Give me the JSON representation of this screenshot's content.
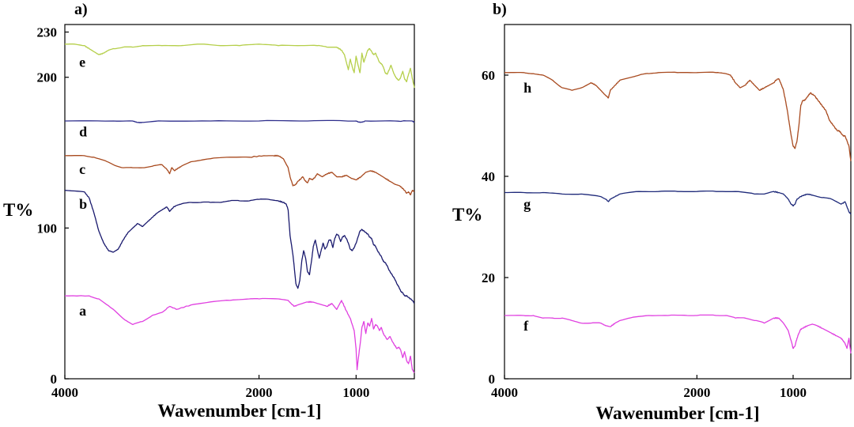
{
  "chart_data": [
    {
      "panel": "a)",
      "type": "line",
      "xlabel": "Wawenumber [cm-1]",
      "ylabel": "T%",
      "xlim": [
        4000,
        400
      ],
      "ylim": [
        0,
        235
      ],
      "x_ticks": [
        4000,
        2000,
        1000
      ],
      "x_tick_labels": [
        "4000",
        "2000",
        "1000"
      ],
      "y_ticks": [
        0,
        100,
        200,
        230
      ],
      "y_tick_labels": [
        "0",
        "100",
        "200",
        "230"
      ],
      "series": [
        {
          "name": "a",
          "color": "#e040e0",
          "label_at": [
            3950,
            45
          ],
          "x": [
            4000,
            3750,
            3650,
            3500,
            3400,
            3300,
            3200,
            3100,
            3000,
            2920,
            2850,
            2700,
            2500,
            2300,
            2100,
            2000,
            1800,
            1700,
            1640,
            1600,
            1500,
            1450,
            1400,
            1300,
            1250,
            1200,
            1150,
            1100,
            1060,
            1040,
            1020,
            1000,
            990,
            980,
            960,
            940,
            920,
            900,
            880,
            860,
            840,
            820,
            800,
            780,
            760,
            740,
            720,
            700,
            680,
            650,
            620,
            600,
            580,
            560,
            540,
            520,
            500,
            480,
            460,
            440,
            420,
            400
          ],
          "y": [
            55,
            55,
            53,
            46,
            40,
            36,
            38,
            42,
            44,
            48,
            46,
            49,
            51,
            52,
            53,
            53,
            53,
            52,
            48,
            49,
            51,
            51,
            50,
            48,
            50,
            46,
            52,
            45,
            40,
            36,
            32,
            20,
            6,
            12,
            22,
            34,
            38,
            30,
            37,
            35,
            40,
            33,
            36,
            35,
            32,
            34,
            30,
            28,
            26,
            28,
            24,
            22,
            20,
            21,
            19,
            14,
            18,
            12,
            10,
            15,
            6,
            4
          ]
        },
        {
          "name": "b",
          "color": "#1a1a6e",
          "label_at": [
            3950,
            116
          ],
          "x": [
            4000,
            3800,
            3750,
            3700,
            3650,
            3600,
            3550,
            3500,
            3450,
            3400,
            3350,
            3300,
            3250,
            3200,
            3150,
            3100,
            3050,
            3000,
            2950,
            2920,
            2880,
            2850,
            2800,
            2700,
            2600,
            2500,
            2400,
            2300,
            2200,
            2100,
            2000,
            1900,
            1800,
            1750,
            1720,
            1700,
            1680,
            1650,
            1620,
            1600,
            1580,
            1560,
            1540,
            1520,
            1500,
            1480,
            1460,
            1440,
            1420,
            1400,
            1380,
            1360,
            1340,
            1320,
            1300,
            1280,
            1260,
            1240,
            1220,
            1200,
            1180,
            1160,
            1140,
            1120,
            1100,
            1080,
            1060,
            1040,
            1020,
            1000,
            980,
            960,
            940,
            920,
            900,
            880,
            860,
            840,
            820,
            800,
            780,
            760,
            740,
            720,
            700,
            680,
            660,
            640,
            620,
            600,
            580,
            560,
            540,
            520,
            500,
            480,
            460,
            440,
            420,
            400
          ],
          "y": [
            125,
            124,
            120,
            110,
            98,
            90,
            85,
            84,
            86,
            92,
            97,
            100,
            103,
            101,
            104,
            107,
            110,
            112,
            114,
            111,
            114,
            115,
            116,
            117,
            117,
            117,
            117,
            118,
            118,
            118,
            119,
            119,
            118,
            117,
            116,
            112,
            95,
            82,
            63,
            60,
            65,
            78,
            85,
            80,
            71,
            69,
            78,
            88,
            92,
            86,
            80,
            85,
            90,
            86,
            88,
            92,
            92,
            87,
            93,
            96,
            95,
            91,
            94,
            95,
            93,
            90,
            86,
            85,
            87,
            90,
            94,
            98,
            99,
            98,
            97,
            96,
            94,
            93,
            89,
            88,
            85,
            83,
            81,
            78,
            77,
            75,
            72,
            70,
            68,
            66,
            63,
            61,
            58,
            57,
            55,
            55,
            54,
            53,
            52,
            50
          ]
        },
        {
          "name": "c",
          "color": "#a84a1f",
          "label_at": [
            3950,
            139
          ],
          "x": [
            4000,
            3800,
            3700,
            3600,
            3500,
            3400,
            3300,
            3200,
            3100,
            3000,
            2950,
            2920,
            2900,
            2870,
            2850,
            2800,
            2700,
            2500,
            2300,
            2100,
            1950,
            1850,
            1800,
            1750,
            1700,
            1680,
            1650,
            1620,
            1600,
            1580,
            1550,
            1520,
            1500,
            1480,
            1450,
            1420,
            1400,
            1350,
            1300,
            1250,
            1200,
            1150,
            1100,
            1050,
            1000,
            950,
            900,
            850,
            800,
            750,
            700,
            650,
            600,
            550,
            500,
            480,
            460,
            440,
            420,
            400
          ],
          "y": [
            148,
            148,
            147,
            145,
            142,
            140,
            140,
            140,
            141,
            142,
            139,
            136,
            140,
            138,
            139,
            141,
            144,
            146,
            147,
            147,
            148,
            148,
            148,
            146,
            140,
            134,
            128,
            129,
            131,
            132,
            134,
            131,
            130,
            133,
            132,
            134,
            136,
            134,
            136,
            137,
            134,
            134,
            135,
            133,
            132,
            134,
            137,
            138,
            137,
            135,
            133,
            131,
            129,
            128,
            125,
            123,
            124,
            122,
            125,
            124
          ]
        },
        {
          "name": "d",
          "color": "#2e2e8c",
          "label_at": [
            3950,
            164
          ],
          "x": [
            4000,
            3500,
            3300,
            3250,
            3200,
            3000,
            2500,
            2000,
            1500,
            1100,
            1000,
            960,
            900,
            600,
            420,
            400
          ],
          "y": [
            171,
            171,
            171,
            170,
            170,
            171,
            171,
            171,
            171,
            171,
            171,
            170,
            171,
            171,
            171,
            170
          ]
        },
        {
          "name": "e",
          "color": "#b5cf4a",
          "label_at": [
            3950,
            210
          ],
          "x": [
            4000,
            3900,
            3800,
            3750,
            3700,
            3650,
            3600,
            3550,
            3500,
            3400,
            3300,
            3200,
            3000,
            2800,
            2600,
            2400,
            2200,
            2000,
            1800,
            1600,
            1400,
            1300,
            1200,
            1150,
            1120,
            1100,
            1080,
            1060,
            1040,
            1020,
            1000,
            980,
            960,
            940,
            920,
            900,
            880,
            860,
            840,
            820,
            800,
            780,
            760,
            740,
            720,
            700,
            680,
            660,
            640,
            620,
            600,
            580,
            560,
            540,
            520,
            500,
            480,
            460,
            440,
            420,
            400
          ],
          "y": [
            222,
            222,
            221,
            219,
            217,
            215,
            216,
            218,
            219,
            220,
            220,
            221,
            221,
            221,
            222,
            221,
            221,
            222,
            221,
            221,
            221,
            220,
            220,
            218,
            215,
            210,
            205,
            212,
            207,
            203,
            214,
            208,
            203,
            216,
            210,
            214,
            218,
            219,
            217,
            215,
            216,
            213,
            210,
            209,
            207,
            203,
            202,
            205,
            208,
            204,
            201,
            199,
            198,
            200,
            204,
            199,
            197,
            202,
            206,
            199,
            193
          ]
        }
      ]
    },
    {
      "panel": "b)",
      "type": "line",
      "xlabel": "Wawenumber [cm-1]",
      "ylabel": "T%",
      "xlim": [
        4000,
        400
      ],
      "ylim": [
        0,
        70
      ],
      "x_ticks": [
        4000,
        2000,
        1000
      ],
      "x_tick_labels": [
        "4000",
        "2000",
        "1000"
      ],
      "y_ticks": [
        0,
        20,
        40,
        60
      ],
      "y_tick_labels": [
        "0",
        "20",
        "40",
        "60"
      ],
      "series": [
        {
          "name": "f",
          "color": "#e040e0",
          "label_at": [
            3900,
            10.5
          ],
          "x": [
            4000,
            3800,
            3700,
            3600,
            3500,
            3400,
            3300,
            3200,
            3100,
            3000,
            2950,
            2900,
            2850,
            2800,
            2700,
            2500,
            2300,
            2100,
            2000,
            1800,
            1700,
            1600,
            1500,
            1400,
            1300,
            1250,
            1200,
            1150,
            1100,
            1050,
            1020,
            1000,
            980,
            960,
            940,
            920,
            900,
            850,
            800,
            750,
            700,
            650,
            600,
            550,
            500,
            480,
            460,
            440,
            420,
            400
          ],
          "y": [
            12.5,
            12.5,
            12.5,
            12,
            12,
            12,
            11.5,
            11,
            11,
            11,
            10.5,
            10.3,
            11,
            11.5,
            12,
            12.5,
            12.5,
            12.5,
            12.5,
            12.5,
            12.5,
            12,
            12,
            11.5,
            11,
            11.5,
            12,
            12,
            11,
            9.5,
            7.5,
            6,
            6.5,
            8,
            9,
            9.8,
            10,
            10.5,
            10.8,
            10.5,
            10,
            9.5,
            9,
            8.5,
            8,
            7.5,
            7,
            6,
            8,
            5
          ]
        },
        {
          "name": "g",
          "color": "#1f2a7a",
          "label_at": [
            3900,
            34.5
          ],
          "x": [
            4000,
            3800,
            3600,
            3400,
            3200,
            3000,
            2950,
            2920,
            2900,
            2850,
            2800,
            2600,
            2400,
            2200,
            2000,
            1800,
            1600,
            1400,
            1300,
            1200,
            1150,
            1100,
            1050,
            1020,
            1000,
            980,
            960,
            920,
            900,
            850,
            800,
            700,
            600,
            500,
            460,
            440,
            420,
            400
          ],
          "y": [
            36.8,
            36.8,
            36.8,
            36.5,
            36.5,
            36,
            35.5,
            35,
            35.5,
            36,
            36.5,
            37,
            37,
            37,
            37,
            37,
            37,
            36.5,
            36.5,
            37,
            36.8,
            36.5,
            35.5,
            34.5,
            34.2,
            34.5,
            35.5,
            36,
            36.2,
            36.5,
            36.3,
            35.8,
            35.5,
            34.5,
            35,
            34,
            33,
            32.5
          ]
        },
        {
          "name": "h",
          "color": "#a84a1f",
          "label_at": [
            3900,
            57.5
          ],
          "x": [
            4000,
            3800,
            3700,
            3600,
            3500,
            3400,
            3300,
            3200,
            3100,
            3050,
            3000,
            2950,
            2920,
            2900,
            2850,
            2800,
            2700,
            2600,
            2500,
            2400,
            2200,
            2000,
            1800,
            1700,
            1650,
            1600,
            1550,
            1500,
            1450,
            1400,
            1350,
            1300,
            1250,
            1200,
            1180,
            1150,
            1130,
            1100,
            1080,
            1060,
            1040,
            1020,
            1000,
            980,
            960,
            940,
            920,
            900,
            880,
            860,
            840,
            820,
            800,
            780,
            760,
            740,
            720,
            700,
            680,
            660,
            640,
            620,
            600,
            580,
            560,
            540,
            520,
            500,
            480,
            460,
            440,
            420,
            400
          ],
          "y": [
            60.5,
            60.5,
            60.3,
            60,
            59,
            57.5,
            57,
            57.5,
            58.5,
            58,
            57,
            56,
            55.5,
            57,
            58,
            59,
            59.5,
            60,
            60.3,
            60.5,
            60.5,
            60.5,
            60.5,
            60.3,
            60,
            58.5,
            57.5,
            58,
            59,
            58,
            57,
            57.5,
            58,
            58.5,
            59,
            59.3,
            58.5,
            57,
            55,
            53,
            50.5,
            48,
            46,
            45.5,
            47,
            50,
            54,
            55,
            55,
            55.5,
            56,
            56.5,
            56.2,
            56,
            55.5,
            55,
            54.5,
            54,
            53.5,
            53,
            52,
            51,
            50.5,
            50,
            49.5,
            49,
            49,
            48.5,
            48,
            48,
            47,
            46,
            43
          ]
        }
      ]
    }
  ]
}
